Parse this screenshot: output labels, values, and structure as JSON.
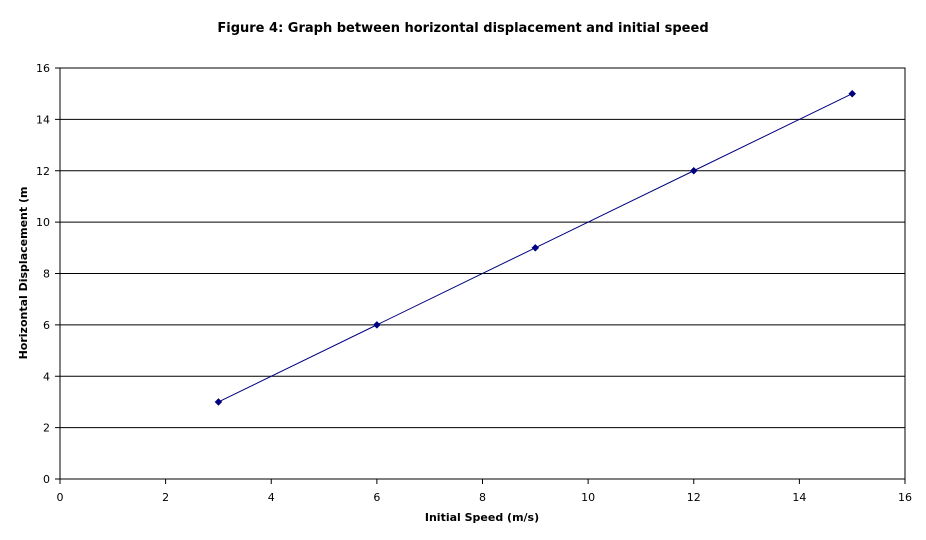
{
  "chart_data": {
    "type": "scatter",
    "title": "Figure 4: Graph between horizontal displacement and initial speed",
    "xlabel": "Initial Speed (m/s)",
    "ylabel": "Horizontal Displacement (m",
    "xlim": [
      0,
      16
    ],
    "ylim": [
      0,
      16
    ],
    "xticks": [
      "0",
      "2",
      "4",
      "6",
      "8",
      "10",
      "12",
      "14",
      "16"
    ],
    "yticks": [
      "0",
      "2",
      "4",
      "6",
      "8",
      "10",
      "12",
      "14",
      "16"
    ],
    "grid": "horizontal",
    "legend": "none",
    "series": [
      {
        "x": [
          3,
          6,
          9,
          12,
          15
        ],
        "y": [
          3,
          6,
          9,
          12,
          15
        ],
        "color": "#000080",
        "marker": "diamond",
        "line": "straight"
      }
    ]
  }
}
